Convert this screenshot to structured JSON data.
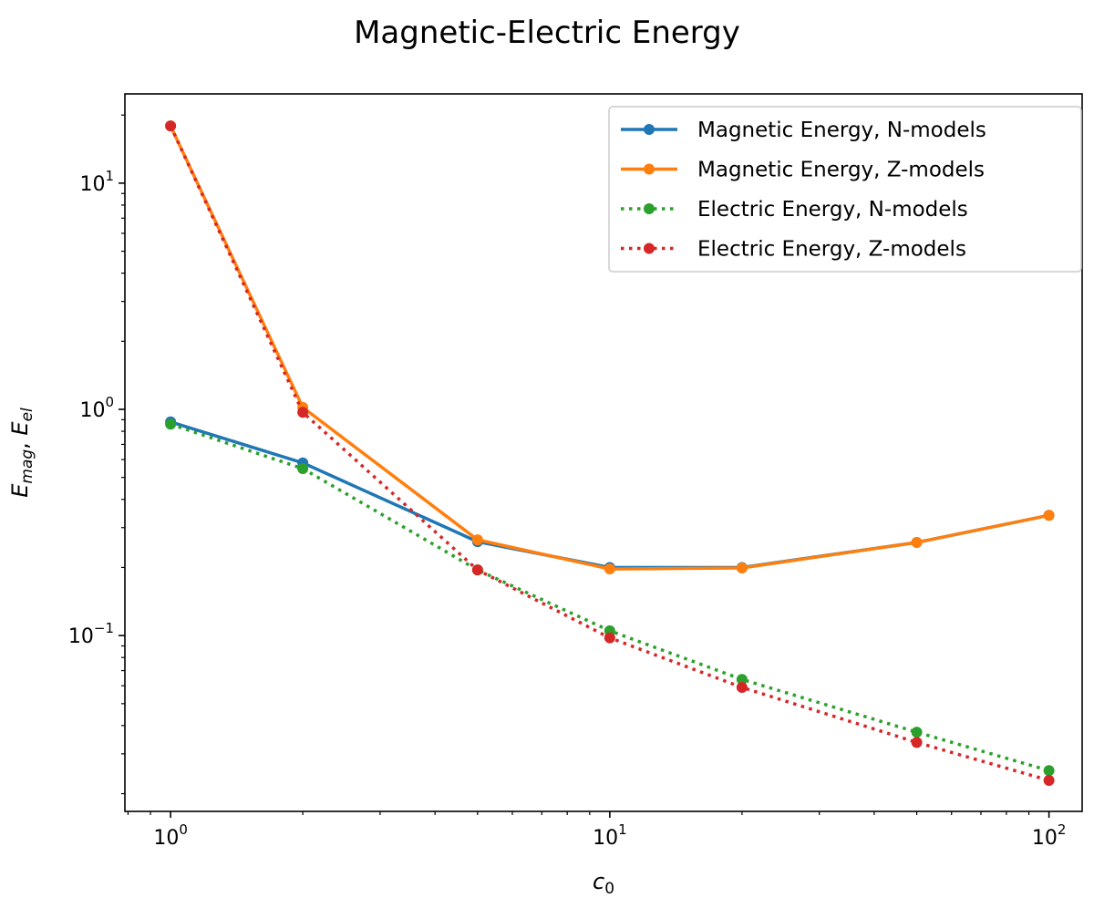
{
  "chart_data": {
    "type": "line",
    "title": "Magnetic-Electric Energy",
    "xlabel": {
      "base": "c",
      "sub": "0"
    },
    "ylabel": {
      "parts": [
        {
          "base": "E",
          "sub": "mag"
        },
        {
          "sep": ", "
        },
        {
          "base": "E",
          "sub": "el"
        }
      ]
    },
    "xscale": "log",
    "yscale": "log",
    "xlim": [
      0.787,
      119
    ],
    "ylim": [
      0.0167,
      24.8
    ],
    "grid": false,
    "legend_position": "top-right",
    "x_ticks": [
      {
        "value": 1,
        "base": "10",
        "exp": "0"
      },
      {
        "value": 10,
        "base": "10",
        "exp": "1"
      },
      {
        "value": 100,
        "base": "10",
        "exp": "2"
      }
    ],
    "y_ticks": [
      {
        "value": 0.1,
        "base": "10",
        "exp": "−1"
      },
      {
        "value": 1,
        "base": "10",
        "exp": "0"
      },
      {
        "value": 10,
        "base": "10",
        "exp": "1"
      }
    ],
    "x": [
      1,
      2,
      5,
      10,
      20,
      50,
      100
    ],
    "series": [
      {
        "name": "Magnetic Energy, N-models",
        "color": "#1f77b4",
        "style": "solid",
        "values": [
          0.88,
          0.58,
          0.26,
          0.2,
          0.2,
          0.258,
          0.34
        ]
      },
      {
        "name": "Magnetic Energy, Z-models",
        "color": "#ff7f0e",
        "style": "solid",
        "values": [
          17.9,
          1.02,
          0.265,
          0.197,
          0.199,
          0.258,
          0.34
        ]
      },
      {
        "name": "Electric Energy, N-models",
        "color": "#2ca02c",
        "style": "dotted",
        "values": [
          0.86,
          0.547,
          0.195,
          0.105,
          0.064,
          0.0374,
          0.0253
        ]
      },
      {
        "name": "Electric Energy, Z-models",
        "color": "#d62728",
        "style": "dotted",
        "values": [
          17.9,
          0.97,
          0.195,
          0.0977,
          0.059,
          0.0337,
          0.0229
        ]
      }
    ]
  }
}
